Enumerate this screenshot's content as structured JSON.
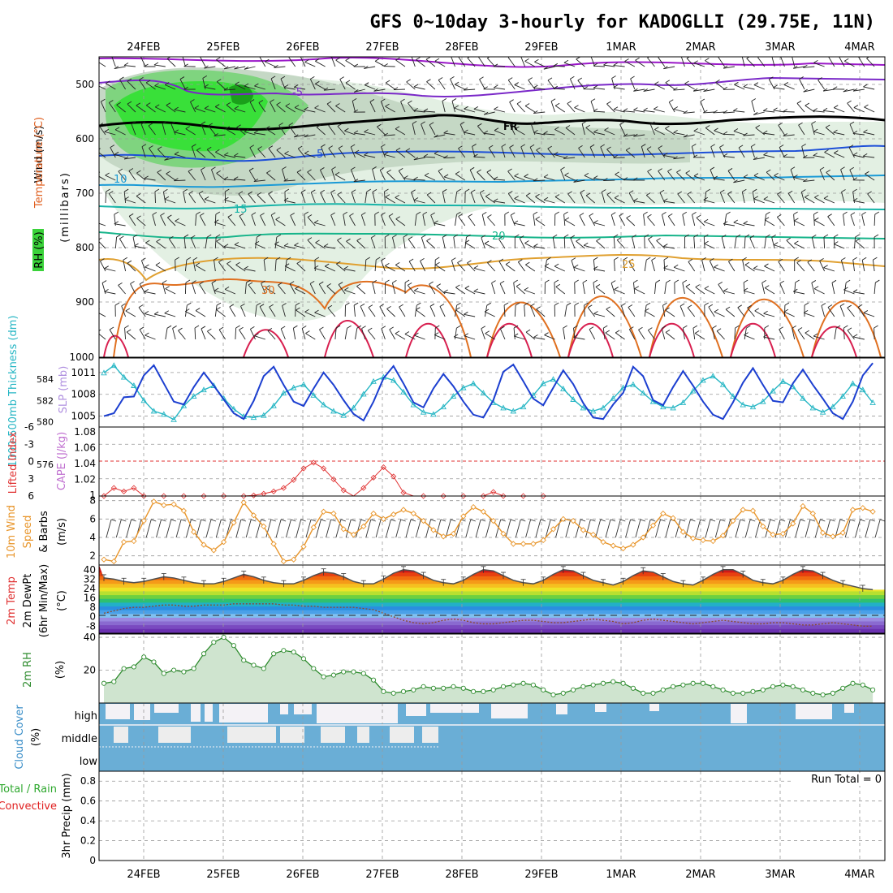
{
  "title": "GFS 0~10day 3-hourly for KADOGLLI (29.75E, 11N)",
  "dates": [
    "24FEB",
    "25FEB",
    "26FEB",
    "27FEB",
    "28FEB",
    "29FEB",
    "1MAR",
    "2MAR",
    "3MAR",
    "4MAR"
  ],
  "colors": {
    "rh_green": "#3ad23a",
    "rh_light": "#e6f2e6",
    "slp": "#1c3fd0",
    "thickness": "#26b6c4",
    "lifted": "#e03030",
    "wind": "#e8952a",
    "rh2m": "#2e8b2e",
    "cloud": "#6aaed6",
    "precip_total": "#2ea82e",
    "precip_conv": "#e02020"
  },
  "panels": {
    "upper": {
      "ylabel_wind": "Wind (m/s)",
      "ylabel_temp": "Temperature (°C)",
      "ylabel_rh": "RH (%)",
      "ylabel_unit": "(millibars)",
      "yticks": [
        "500",
        "600",
        "700",
        "800",
        "900",
        "1000"
      ],
      "contour_labels": [
        "-5",
        "FR",
        "5",
        "10",
        "15",
        "20",
        "25",
        "30"
      ]
    },
    "slp": {
      "ylabel_left": "1000-500mb Thickness (dm)",
      "ylabel_right": "SLP (mb)",
      "yticks_left": [
        "584",
        "582",
        "580",
        "576"
      ],
      "yticks_right": [
        "1011",
        "1008",
        "1005"
      ]
    },
    "lifted": {
      "ylabel_left": "Lifted Index",
      "ylabel_right": "CAPE (J/kg)",
      "yticks_left": [
        "-6",
        "-3",
        "0",
        "3",
        "6"
      ],
      "yticks_right": [
        "1.08",
        "1.06",
        "1.04",
        "1.02",
        "1"
      ]
    },
    "wind10": {
      "ylabel1": "10m Wind",
      "ylabel2": "Speed",
      "ylabel3": "& Barbs",
      "unit": "(m/s)",
      "yticks": [
        "8",
        "6",
        "4",
        "2"
      ]
    },
    "temp2m": {
      "ylabel1": "2m Temp",
      "ylabel2": "2m DewPt",
      "ylabel3": "(6hr Min/Max)",
      "unit": "(°C)",
      "yticks": [
        "40",
        "32",
        "24",
        "16",
        "8",
        "0",
        "-8"
      ]
    },
    "rh2m": {
      "ylabel": "2m RH",
      "unit": "(%)",
      "yticks": [
        "40",
        "20"
      ]
    },
    "cloud": {
      "ylabel": "Cloud Cover",
      "unit": "(%)",
      "levels": [
        "high",
        "middle",
        "low"
      ]
    },
    "precip": {
      "ylabel1": "3hr Precip (mm)",
      "ylabel2": "Total / Rain",
      "ylabel3": "Convective",
      "run_total": "Run Total = 0",
      "yticks": [
        "0.8",
        "0.6",
        "0.4",
        "0.2",
        "0"
      ]
    }
  },
  "chart_data": [
    {
      "type": "line",
      "name": "slp_thickness",
      "series": [
        {
          "name": "SLP (mb)",
          "values": [
            1005.0,
            1005.4,
            1007.6,
            1007.7,
            1010.6,
            1012.0,
            1009.5,
            1007.0,
            1006.6,
            1009.0,
            1011.0,
            1009.2,
            1007.3,
            1005.4,
            1004.6,
            1007.1,
            1010.5,
            1011.8,
            1009.3,
            1007.0,
            1006.4,
            1008.8,
            1011.0,
            1009.3,
            1007.2,
            1005.3,
            1004.4,
            1007.0,
            1010.2,
            1011.9,
            1009.5,
            1006.9,
            1006.2,
            1008.8,
            1010.8,
            1009.1,
            1007.0,
            1005.2,
            1004.8,
            1007.2,
            1011.1,
            1012.1,
            1009.8,
            1007.4,
            1006.5,
            1008.9,
            1011.3,
            1009.4,
            1006.8,
            1004.8,
            1004.6,
            1006.6,
            1008.2,
            1011.8,
            1010.5,
            1007.2,
            1006.5,
            1009.0,
            1011.2,
            1009.2,
            1007.0,
            1005.2,
            1004.6,
            1006.9,
            1009.6,
            1011.6,
            1009.3,
            1007.1,
            1006.9,
            1009.5,
            1011.4,
            1009.3,
            1007.4,
            1005.4,
            1004.6,
            1007.0,
            1010.6,
            1012.3
          ]
        },
        {
          "name": "Thickness (dm)",
          "values": [
            584.6,
            585.3,
            584.2,
            583.4,
            582.0,
            581.0,
            580.7,
            580.2,
            581.5,
            582.4,
            583.0,
            583.4,
            582.2,
            581.2,
            580.5,
            580.4,
            580.6,
            581.5,
            582.7,
            583.2,
            583.5,
            582.5,
            581.6,
            581.0,
            580.6,
            581.3,
            582.6,
            583.8,
            584.2,
            583.9,
            582.8,
            581.6,
            580.9,
            580.7,
            581.4,
            582.4,
            583.2,
            583.6,
            582.7,
            581.8,
            581.3,
            581.0,
            581.4,
            582.5,
            583.6,
            584.0,
            583.1,
            582.1,
            581.3,
            581.0,
            581.3,
            582.2,
            583.2,
            583.5,
            582.7,
            581.9,
            581.4,
            581.3,
            581.8,
            582.9,
            583.9,
            584.3,
            583.5,
            582.4,
            581.6,
            581.4,
            581.9,
            582.9,
            583.8,
            583.3,
            582.2,
            581.3,
            580.9,
            581.4,
            582.4,
            583.6,
            583.0,
            581.8
          ]
        }
      ],
      "ylim_slp": [
        1003.5,
        1013.0
      ],
      "ylim_thickness": [
        579.5,
        586.0
      ]
    },
    {
      "type": "line",
      "name": "lifted_index",
      "series": [
        {
          "name": "Lifted Index",
          "values": [
            6.0,
            4.6,
            5.2,
            4.6,
            6.0,
            6.0,
            6.0,
            6.0,
            6.0,
            6.0,
            6.0,
            6.0,
            6.0,
            6.0,
            6.0,
            5.9,
            5.6,
            5.2,
            4.6,
            3.2,
            1.2,
            0.2,
            1.2,
            3.1,
            5.0,
            6.0,
            4.6,
            2.8,
            1.0,
            2.6,
            5.4,
            6.0,
            6.0,
            6.0,
            6.0,
            6.0,
            6.0,
            6.0,
            6.0,
            5.3,
            6.0,
            6.0,
            6.0,
            6.0,
            6.0,
            6.0,
            6.0,
            6.0,
            6.0,
            6.0,
            6.0,
            6.0,
            6.0,
            6.0,
            6.0,
            6.0,
            6.0,
            6.0,
            6.0,
            6.0,
            6.0,
            6.0,
            6.0,
            6.0,
            6.0,
            6.0,
            6.0,
            6.0,
            6.0,
            6.0,
            6.0,
            6.0,
            6.0,
            6.0,
            6.0,
            6.0,
            6.0,
            6.0
          ]
        }
      ],
      "ylim": [
        6,
        -6
      ]
    },
    {
      "type": "line",
      "name": "wind10m",
      "series": [
        {
          "name": "10m Wind Speed (m/s)",
          "values": [
            1.6,
            1.4,
            3.5,
            3.6,
            5.8,
            7.9,
            7.5,
            7.6,
            6.9,
            4.6,
            3.2,
            2.6,
            3.5,
            5.6,
            7.8,
            6.4,
            5.2,
            3.3,
            1.4,
            1.6,
            3.0,
            5.1,
            6.8,
            6.6,
            4.9,
            4.3,
            5.2,
            6.6,
            6.0,
            6.5,
            7.0,
            6.6,
            5.8,
            4.8,
            4.1,
            4.4,
            6.3,
            7.3,
            6.8,
            5.8,
            4.4,
            3.3,
            3.3,
            3.3,
            3.7,
            4.9,
            6.0,
            5.8,
            4.8,
            4.3,
            3.5,
            3.1,
            2.8,
            3.2,
            4.0,
            5.3,
            6.6,
            6.1,
            4.6,
            3.9,
            3.7,
            3.6,
            4.2,
            5.8,
            7.0,
            6.9,
            5.2,
            4.3,
            4.4,
            5.5,
            7.4,
            6.6,
            4.5,
            4.1,
            4.5,
            7.0,
            7.2,
            6.8
          ]
        }
      ],
      "ylim": [
        1,
        8.5
      ]
    },
    {
      "type": "area",
      "name": "temp2m",
      "series": [
        {
          "name": "2m Temp (°C)",
          "values": [
            33,
            32,
            30,
            29,
            30,
            32,
            34,
            33,
            31,
            29,
            28,
            28,
            30,
            33,
            36,
            34,
            31,
            29,
            28,
            28,
            31,
            35,
            38,
            37,
            34,
            30,
            28,
            28,
            32,
            37,
            40,
            39,
            35,
            31,
            29,
            28,
            31,
            36,
            40,
            39,
            35,
            31,
            29,
            28,
            31,
            36,
            40,
            39,
            35,
            31,
            29,
            27,
            30,
            35,
            39,
            38,
            34,
            30,
            28,
            27,
            31,
            36,
            40,
            40,
            36,
            31,
            29,
            28,
            31,
            36,
            40,
            39,
            35,
            31,
            28,
            26,
            24,
            23
          ]
        },
        {
          "name": "2m DewPt (°C)",
          "values": [
            3,
            5,
            7,
            8,
            8,
            9,
            10,
            10,
            9,
            9,
            10,
            10,
            10,
            11,
            11,
            11,
            11,
            11,
            10,
            10,
            9,
            9,
            8,
            8,
            8,
            8,
            7,
            6,
            3,
            0,
            -3,
            -5,
            -6,
            -5,
            -3,
            -2,
            -3,
            -5,
            -6,
            -6,
            -5,
            -4,
            -3,
            -3,
            -4,
            -5,
            -5,
            -4,
            -3,
            -2,
            -3,
            -4,
            -6,
            -5,
            -3,
            -2,
            -3,
            -4,
            -5,
            -6,
            -5,
            -4,
            -3,
            -4,
            -5,
            -6,
            -6,
            -5,
            -5,
            -6,
            -7,
            -7,
            -6,
            -5,
            -6,
            -7,
            -8,
            -8
          ]
        }
      ],
      "ylim": [
        -14,
        44
      ]
    },
    {
      "type": "area",
      "name": "rh2m",
      "series": [
        {
          "name": "2m RH (%)",
          "values": [
            12,
            13,
            21,
            22,
            28,
            25,
            18,
            20,
            19,
            21,
            30,
            37,
            40,
            35,
            26,
            23,
            21,
            30,
            32,
            31,
            27,
            21,
            16,
            17,
            19,
            19,
            18,
            14,
            7,
            6,
            7,
            8,
            10,
            9,
            9,
            10,
            9,
            7,
            7,
            8,
            10,
            11,
            12,
            11,
            8,
            5,
            6,
            8,
            10,
            11,
            12,
            13,
            12,
            9,
            6,
            6,
            8,
            10,
            11,
            12,
            12,
            10,
            8,
            6,
            6,
            7,
            8,
            10,
            11,
            10,
            8,
            6,
            5,
            6,
            9,
            12,
            11,
            8
          ]
        }
      ],
      "ylim": [
        0,
        42
      ]
    },
    {
      "type": "bar",
      "name": "precip",
      "series": [
        {
          "name": "3hr Precip (mm)",
          "values": [
            0,
            0,
            0,
            0,
            0,
            0,
            0,
            0,
            0,
            0
          ]
        }
      ],
      "ylim": [
        0,
        0.9
      ]
    }
  ]
}
